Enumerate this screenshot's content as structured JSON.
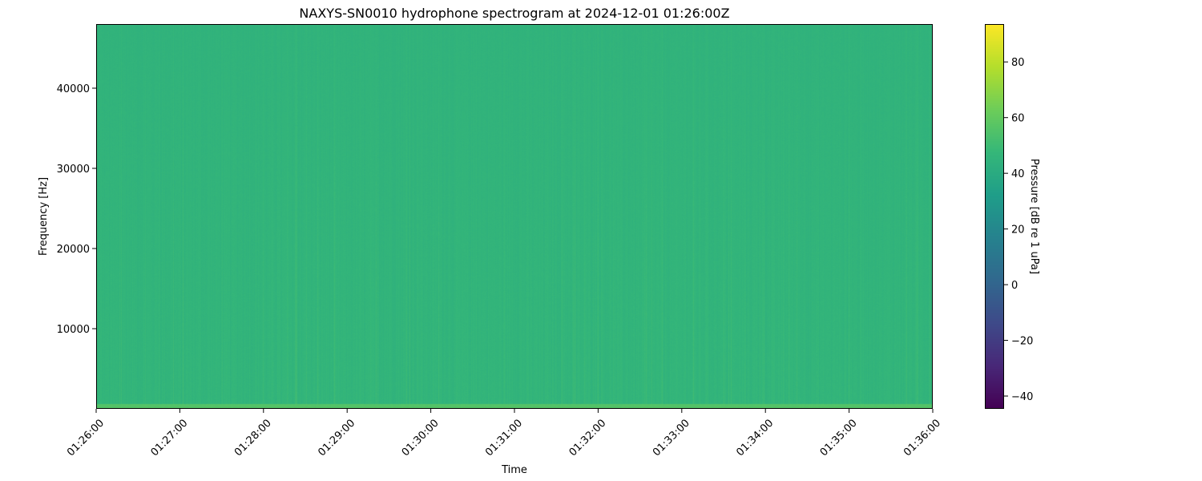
{
  "chart_data": {
    "type": "heatmap",
    "title": "NAXYS-SN0010 hydrophone spectrogram at 2024-12-01 01:26:00Z",
    "xlabel": "Time",
    "ylabel": "Frequency [Hz]",
    "x_ticks": [
      "01:26:00",
      "01:27:00",
      "01:28:00",
      "01:29:00",
      "01:30:00",
      "01:31:00",
      "01:32:00",
      "01:33:00",
      "01:34:00",
      "01:35:00",
      "01:36:00"
    ],
    "xlim": [
      "01:26:00",
      "01:36:00"
    ],
    "y_ticks": [
      10000,
      20000,
      30000,
      40000
    ],
    "ylim": [
      0,
      48000
    ],
    "colorbar": {
      "label": "Pressure [dB re 1 uPa]",
      "colormap": "viridis",
      "ticks": [
        -40,
        -20,
        0,
        20,
        40,
        60,
        80
      ],
      "range": [
        -44.6,
        93.6
      ]
    },
    "typical_level_db": 45,
    "low_frequency_band_level_db": 56,
    "grid": false
  }
}
